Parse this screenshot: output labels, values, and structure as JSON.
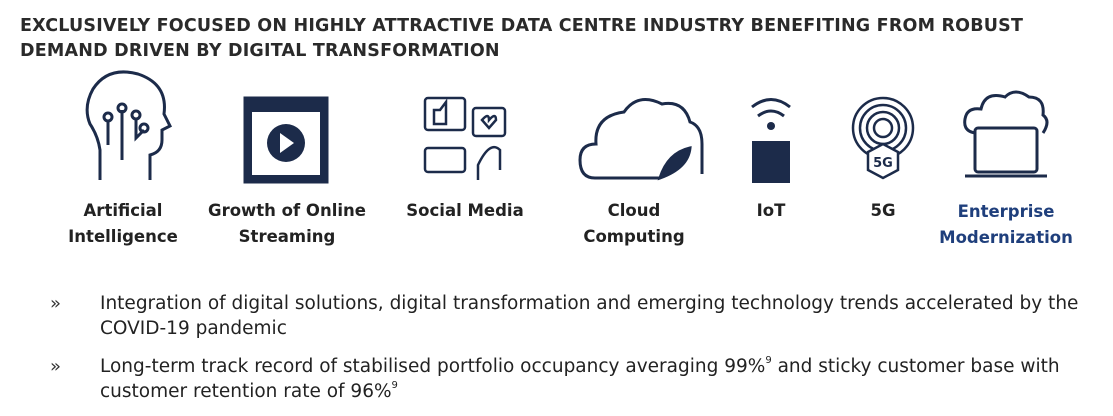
{
  "header": {
    "title_lines": [
      "EXCLUSIVELY FOCUSED ON HIGHLY ATTRACTIVE DATA CENTRE INDUSTRY BENEFITING FROM ROBUST",
      "DEMAND DRIVEN BY DIGITAL TRANSFORMATION"
    ]
  },
  "drivers": [
    {
      "label_lines": [
        "Artificial",
        "Intelligence"
      ]
    },
    {
      "label_lines": [
        "Growth of Online",
        "Streaming"
      ]
    },
    {
      "label_lines": [
        "Social Media"
      ]
    },
    {
      "label_lines": [
        "Cloud",
        "Computing"
      ]
    },
    {
      "label_lines": [
        "IoT"
      ]
    },
    {
      "label_lines": [
        "5G"
      ]
    },
    {
      "label_lines": [
        "Enterprise",
        "Modernization"
      ]
    }
  ],
  "icon_text": {
    "five_g": "5G"
  },
  "bullet_marker": "»",
  "bullets": [
    {
      "segments": [
        {
          "text": "Integration of digital solutions, digital transformation and emerging technology trends accelerated by the COVID-19 pandemic"
        }
      ]
    },
    {
      "segments": [
        {
          "text": "Long-term track record of stabilised portfolio occupancy averaging 99%"
        },
        {
          "sup": "9"
        },
        {
          "text": " and sticky customer base with customer retention rate of 96%"
        },
        {
          "sup": "9"
        }
      ]
    }
  ]
}
